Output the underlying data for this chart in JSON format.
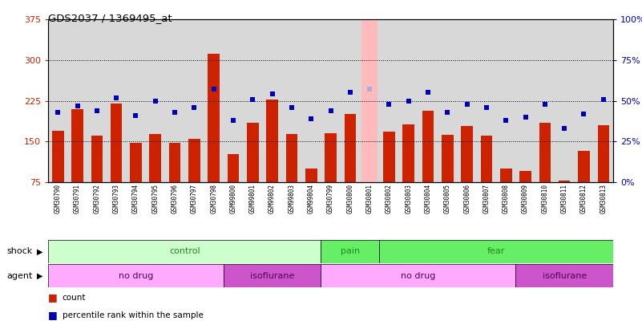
{
  "title": "GDS2037 / 1369495_at",
  "samples": [
    "GSM30790",
    "GSM30791",
    "GSM30792",
    "GSM30793",
    "GSM30794",
    "GSM30795",
    "GSM30796",
    "GSM30797",
    "GSM30798",
    "GSM99800",
    "GSM99801",
    "GSM99802",
    "GSM99803",
    "GSM99804",
    "GSM30799",
    "GSM30800",
    "GSM30801",
    "GSM30802",
    "GSM30803",
    "GSM30804",
    "GSM30805",
    "GSM30806",
    "GSM30807",
    "GSM30808",
    "GSM30809",
    "GSM30810",
    "GSM30811",
    "GSM30812",
    "GSM30813"
  ],
  "counts": [
    170,
    210,
    160,
    220,
    147,
    163,
    148,
    155,
    312,
    126,
    185,
    228,
    163,
    100,
    165,
    200,
    370,
    168,
    182,
    207,
    162,
    178,
    160,
    100,
    95,
    185,
    78,
    133,
    180
  ],
  "percentile": [
    43,
    47,
    44,
    52,
    41,
    50,
    43,
    46,
    57,
    38,
    51,
    54,
    46,
    39,
    44,
    55,
    57,
    48,
    50,
    55,
    43,
    48,
    46,
    38,
    40,
    48,
    33,
    42,
    51
  ],
  "absent_mask": [
    false,
    false,
    false,
    false,
    false,
    false,
    false,
    false,
    false,
    false,
    false,
    false,
    false,
    false,
    false,
    false,
    true,
    false,
    false,
    false,
    false,
    false,
    false,
    false,
    false,
    false,
    false,
    false,
    false
  ],
  "ylim_left": [
    75,
    375
  ],
  "ylim_right": [
    0,
    100
  ],
  "yticks_left": [
    75,
    150,
    225,
    300,
    375
  ],
  "yticks_right": [
    0,
    25,
    50,
    75,
    100
  ],
  "bar_color": "#cc2200",
  "bar_color_absent": "#ffbbbb",
  "square_color": "#0000bb",
  "square_color_absent": "#aaaadd",
  "shock_groups": [
    {
      "label": "control",
      "start": 0,
      "end": 14,
      "color": "#ccffcc"
    },
    {
      "label": "pain",
      "start": 14,
      "end": 17,
      "color": "#66ee66"
    },
    {
      "label": "fear",
      "start": 17,
      "end": 29,
      "color": "#66ee66"
    }
  ],
  "agent_groups": [
    {
      "label": "no drug",
      "start": 0,
      "end": 9,
      "color": "#ffaaff"
    },
    {
      "label": "isoflurane",
      "start": 9,
      "end": 14,
      "color": "#cc55cc"
    },
    {
      "label": "no drug",
      "start": 14,
      "end": 24,
      "color": "#ffaaff"
    },
    {
      "label": "isoflurane",
      "start": 24,
      "end": 29,
      "color": "#cc55cc"
    }
  ],
  "shock_label": "shock",
  "agent_label": "agent",
  "bg_color": "#ffffff",
  "plot_bg": "#d8d8d8",
  "xtick_bg": "#c8c8c8"
}
